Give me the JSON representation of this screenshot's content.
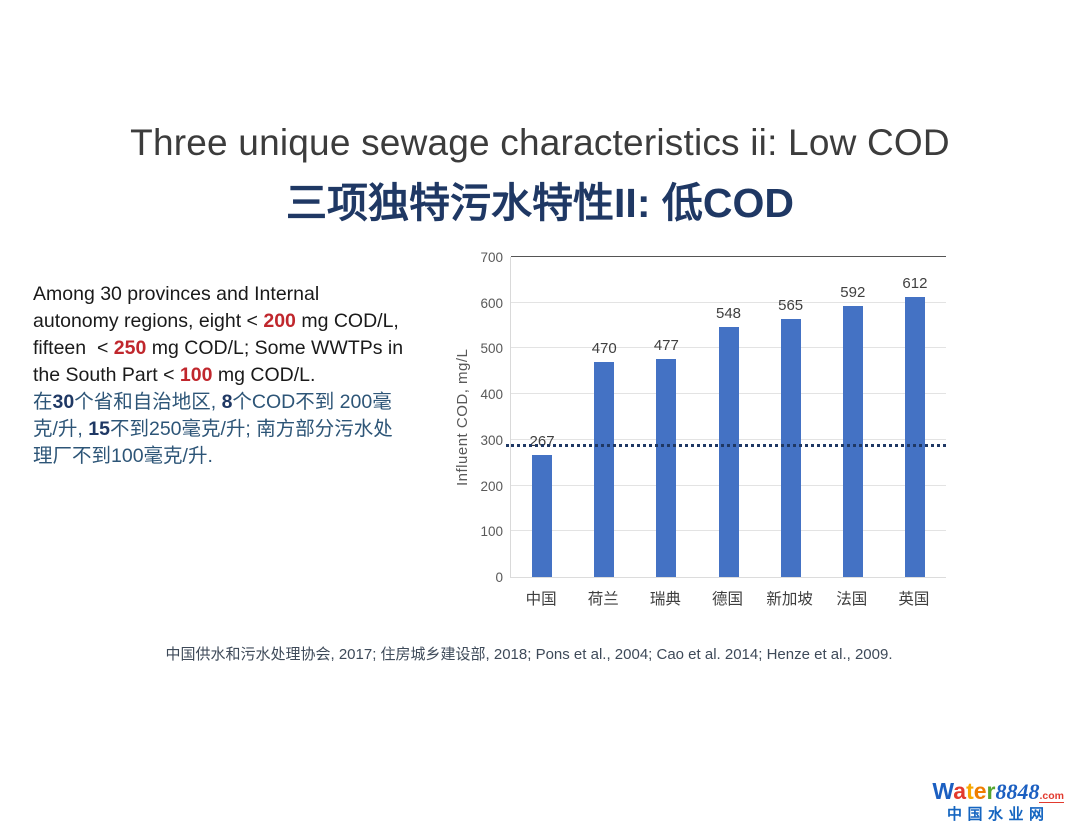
{
  "slide": {
    "title_en": "Three unique sewage characteristics ii: Low COD",
    "title_zh": "三项独特污水特性II: 低COD",
    "citation": "中国供水和污水处理协会, 2017; 住房城乡建设部, 2018; Pons et al., 2004; Cao et al. 2014; Henze et al., 2009."
  },
  "body_text": {
    "lines": [
      [
        {
          "t": "Among 30 provinces and Internal",
          "s": "en"
        }
      ],
      [
        {
          "t": "autonomy regions, eight < ",
          "s": "en"
        },
        {
          "t": "200",
          "s": "en-strong"
        },
        {
          "t": " mg COD/L,",
          "s": "en"
        }
      ],
      [
        {
          "t": "fifteen  < ",
          "s": "en"
        },
        {
          "t": "250",
          "s": "en-strong"
        },
        {
          "t": " mg COD/L; Some WWTPs in",
          "s": "en"
        }
      ],
      [
        {
          "t": "the South Part < ",
          "s": "en"
        },
        {
          "t": "100",
          "s": "en-strong"
        },
        {
          "t": " mg COD/L.",
          "s": "en"
        }
      ],
      [
        {
          "t": "在",
          "s": "zh"
        },
        {
          "t": "30",
          "s": "zh-strong"
        },
        {
          "t": "个省和自治地区, ",
          "s": "zh"
        },
        {
          "t": "8",
          "s": "zh-strong"
        },
        {
          "t": "个COD不到 200毫",
          "s": "zh"
        }
      ],
      [
        {
          "t": "克/升, ",
          "s": "zh"
        },
        {
          "t": "15",
          "s": "zh-strong"
        },
        {
          "t": "不到250毫克/升; 南方部分污水处",
          "s": "zh"
        }
      ],
      [
        {
          "t": "理厂不到100毫克/升.",
          "s": "zh"
        }
      ]
    ]
  },
  "chart_data": {
    "type": "bar",
    "title": "",
    "categories": [
      "中国",
      "荷兰",
      "瑞典",
      "德国",
      "新加坡",
      "法国",
      "英国"
    ],
    "values": [
      267,
      470,
      477,
      548,
      565,
      592,
      612
    ],
    "xlabel": "",
    "ylabel": "Influent COD, mg/L",
    "ylim": [
      0,
      700
    ],
    "ytick_step": 100,
    "grid": true,
    "legend": false,
    "bar_color": "#4472c4",
    "value_label_color": "#404040",
    "reference_line": {
      "value": 285,
      "style": "dotted",
      "color": "#1f3864"
    }
  },
  "logo": {
    "word_letters": [
      {
        "ch": "W",
        "color": "#1b5fc1"
      },
      {
        "ch": "a",
        "color": "#e23a2e"
      },
      {
        "ch": "t",
        "color": "#f7a800"
      },
      {
        "ch": "e",
        "color": "#ef7d00"
      },
      {
        "ch": "r",
        "color": "#55a630"
      }
    ],
    "number": "8848",
    "number_color": "#1b5fc1",
    "tld": ".com",
    "tld_color": "#e23a2e",
    "tagline": "中国水业网",
    "tagline_color": "#1565c0"
  }
}
